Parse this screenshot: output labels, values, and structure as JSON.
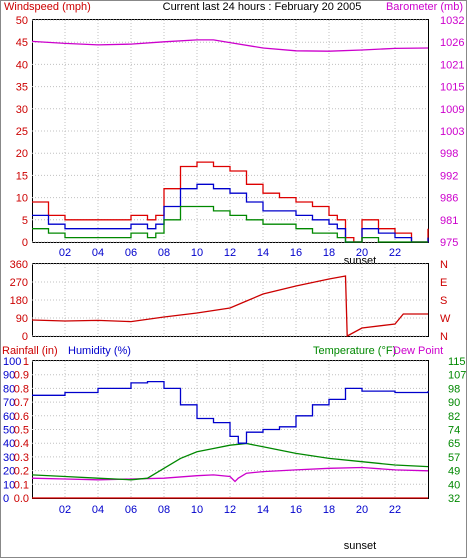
{
  "header": {
    "left_label": "Windspeed (mph)",
    "center_title": "Current last 24 hours : February 20 2005",
    "right_label": "Barometer (mb)"
  },
  "colors": {
    "wind_max": "#dd0000",
    "wind_avg": "#0000cc",
    "wind_min": "#008800",
    "barometer": "#cc00cc",
    "direction": "#cc0000",
    "rainfall": "#dd0000",
    "humidity": "#0000cc",
    "temperature": "#008800",
    "dew_point": "#cc00cc",
    "label_red": "#cc0000",
    "label_blue": "#0000cc",
    "label_green": "#008800",
    "label_magenta": "#cc00cc"
  },
  "chart_data": [
    {
      "type": "line",
      "name": "wind-barometer",
      "xlabel": "sunset",
      "xlim": [
        0,
        24
      ],
      "x_ticks": [
        "02",
        "04",
        "06",
        "08",
        "10",
        "12",
        "14",
        "16",
        "18",
        "20",
        "22"
      ],
      "ylabel": "Windspeed (mph)",
      "ylim": [
        0,
        50
      ],
      "y_ticks": [
        "0",
        "5",
        "10",
        "15",
        "20",
        "25",
        "30",
        "35",
        "40",
        "45",
        "50"
      ],
      "y2label": "Barometer (mb)",
      "y2_ticks": [
        "975",
        "981",
        "986",
        "992",
        "998",
        "1003",
        "1009",
        "1015",
        "1021",
        "1026",
        "1032"
      ],
      "barometer": {
        "x": [
          0,
          2,
          4,
          6,
          8,
          10,
          11,
          12,
          14,
          16,
          18,
          20,
          22,
          24
        ],
        "y": [
          1026.5,
          1026.0,
          1025.6,
          1025.8,
          1026.4,
          1026.9,
          1026.9,
          1026.2,
          1024.8,
          1024.1,
          1024.0,
          1024.3,
          1024.7,
          1024.8
        ]
      },
      "wind_x": [
        0,
        1,
        2,
        3,
        4,
        5,
        6,
        7,
        7.5,
        8,
        9,
        10,
        11,
        12,
        13,
        14,
        15,
        16,
        17,
        18,
        18.5,
        19,
        19.5,
        20,
        21,
        22,
        23,
        24
      ],
      "series": [
        {
          "values": [
            9,
            6,
            5,
            5,
            5,
            5,
            6,
            5,
            6,
            12,
            17,
            18,
            17,
            16,
            13,
            11,
            10,
            9,
            8,
            6,
            5,
            1,
            0,
            5,
            3,
            2,
            0,
            3
          ]
        },
        {
          "values": [
            6,
            4,
            3,
            3,
            3,
            3,
            4,
            3,
            4,
            8,
            12,
            13,
            12,
            11,
            9,
            7,
            7,
            6,
            5,
            4,
            3,
            0,
            0,
            3,
            2,
            1,
            0,
            1
          ]
        },
        {
          "values": [
            3,
            2,
            1,
            1,
            1,
            1,
            2,
            1,
            2,
            5,
            8,
            8,
            7,
            6,
            5,
            4,
            4,
            3,
            2,
            2,
            1,
            0,
            0,
            1,
            0,
            0,
            0,
            0
          ]
        }
      ]
    },
    {
      "type": "line",
      "name": "wind-direction",
      "xlim": [
        0,
        24
      ],
      "ylim": [
        0,
        360
      ],
      "y_ticks": [
        "0",
        "90",
        "180",
        "270",
        "360"
      ],
      "y2_ticks": [
        "N",
        "W",
        "S",
        "E",
        "N"
      ],
      "x": [
        0,
        2,
        4,
        6,
        8,
        10,
        12,
        13,
        14,
        16,
        18,
        19,
        19.1,
        20,
        22,
        22.5,
        24
      ],
      "y": [
        80,
        75,
        78,
        72,
        95,
        115,
        140,
        175,
        210,
        250,
        285,
        300,
        0,
        40,
        60,
        110,
        110
      ]
    },
    {
      "type": "line",
      "name": "rain-humidity-temperature",
      "xlabel": "sunset",
      "xlim": [
        0,
        24
      ],
      "x_ticks": [
        "02",
        "04",
        "06",
        "08",
        "10",
        "12",
        "14",
        "16",
        "18",
        "20",
        "22"
      ],
      "rain_label": "Rainfall (in)",
      "humidity_label": "Humidity (%)",
      "temp_label": "Temperature (°F)",
      "dew_label": "Dew Point",
      "left_red_ticks": [
        "0.0",
        "0.1",
        "0.2",
        "0.3",
        "0.4",
        "0.5",
        "0.6",
        "0.7",
        "0.8",
        "0.9",
        "1"
      ],
      "left_blue_ticks": [
        "0",
        "10",
        "20",
        "30",
        "40",
        "50",
        "60",
        "70",
        "80",
        "90",
        "100"
      ],
      "right_ticks": [
        "32",
        "40",
        "49",
        "57",
        "65",
        "74",
        "82",
        "90",
        "98",
        "107",
        "115"
      ],
      "ylim": [
        0,
        100
      ],
      "humidity": {
        "x": [
          0,
          2,
          4,
          6,
          7,
          8,
          9,
          10,
          11,
          12,
          12.5,
          13,
          14,
          15,
          16,
          17,
          18,
          19,
          20,
          22,
          24
        ],
        "y": [
          75,
          77,
          80,
          84,
          85,
          80,
          68,
          58,
          55,
          45,
          40,
          48,
          50,
          52,
          60,
          68,
          72,
          80,
          78,
          77,
          78
        ]
      },
      "temperature": {
        "x": [
          0,
          2,
          4,
          6,
          7,
          8,
          9,
          10,
          11,
          12,
          13,
          14,
          16,
          18,
          20,
          22,
          24
        ],
        "y": [
          46.0,
          45.0,
          44.0,
          43.0,
          44.0,
          50.0,
          56.0,
          60.0,
          62.0,
          64.0,
          65.0,
          63.0,
          59.0,
          56.0,
          54.0,
          52.0,
          51.0
        ]
      },
      "dew_point": {
        "x": [
          0,
          2,
          4,
          6,
          8,
          10,
          11,
          12,
          12.3,
          12.5,
          13,
          14,
          16,
          18,
          20,
          22,
          24
        ],
        "y": [
          44.0,
          43.5,
          43.0,
          43.5,
          44.0,
          45.5,
          46.0,
          45.0,
          42.0,
          44.0,
          47.0,
          48.0,
          49.0,
          50.0,
          50.5,
          49.0,
          48.5
        ]
      },
      "rainfall": {
        "x": [
          0,
          24
        ],
        "y": [
          0.0,
          0.0
        ]
      }
    }
  ]
}
